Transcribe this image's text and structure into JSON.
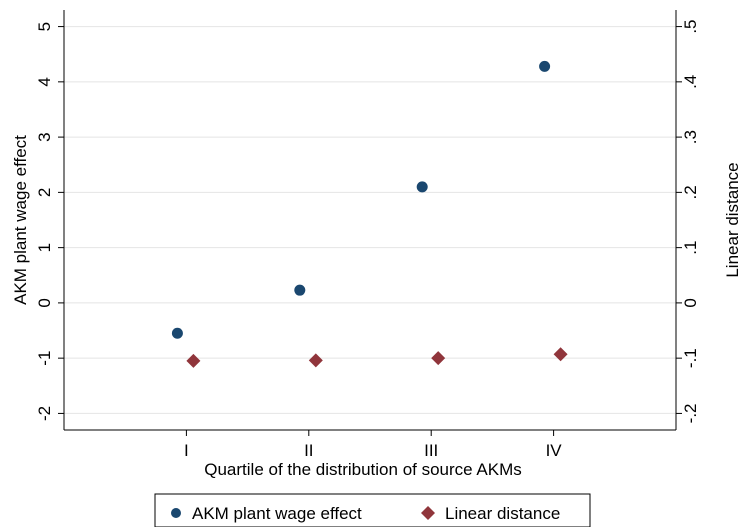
{
  "chart_data": {
    "type": "scatter",
    "categories": [
      "I",
      "II",
      "III",
      "IV"
    ],
    "series": [
      {
        "name": "AKM plant wage effect",
        "axis": "left",
        "marker": "circle",
        "color": "#1a476f",
        "values": [
          -0.55,
          0.23,
          2.1,
          4.28
        ]
      },
      {
        "name": "Linear distance",
        "axis": "right",
        "marker": "diamond",
        "color": "#90353b",
        "values": [
          -0.105,
          -0.104,
          -0.1,
          -0.093
        ]
      }
    ],
    "xlabel": "Quartile of the distribution of source AKMs",
    "ylabel_left": "AKM plant wage effect",
    "ylabel_right": "Linear distance",
    "ylim_left": [
      -2.3,
      5.3
    ],
    "ylim_right": [
      -0.23,
      0.53
    ],
    "yticks_left": [
      "-2",
      "-1",
      "0",
      "1",
      "2",
      "3",
      "4",
      "5"
    ],
    "yticks_left_values": [
      -2,
      -1,
      0,
      1,
      2,
      3,
      4,
      5
    ],
    "yticks_right": [
      "-.2",
      "-.1",
      "0",
      ".1",
      ".2",
      ".3",
      ".4",
      ".5"
    ],
    "yticks_right_values": [
      -0.2,
      -0.1,
      0,
      0.1,
      0.2,
      0.3,
      0.4,
      0.5
    ],
    "grid": true,
    "legend_position": "bottom"
  }
}
